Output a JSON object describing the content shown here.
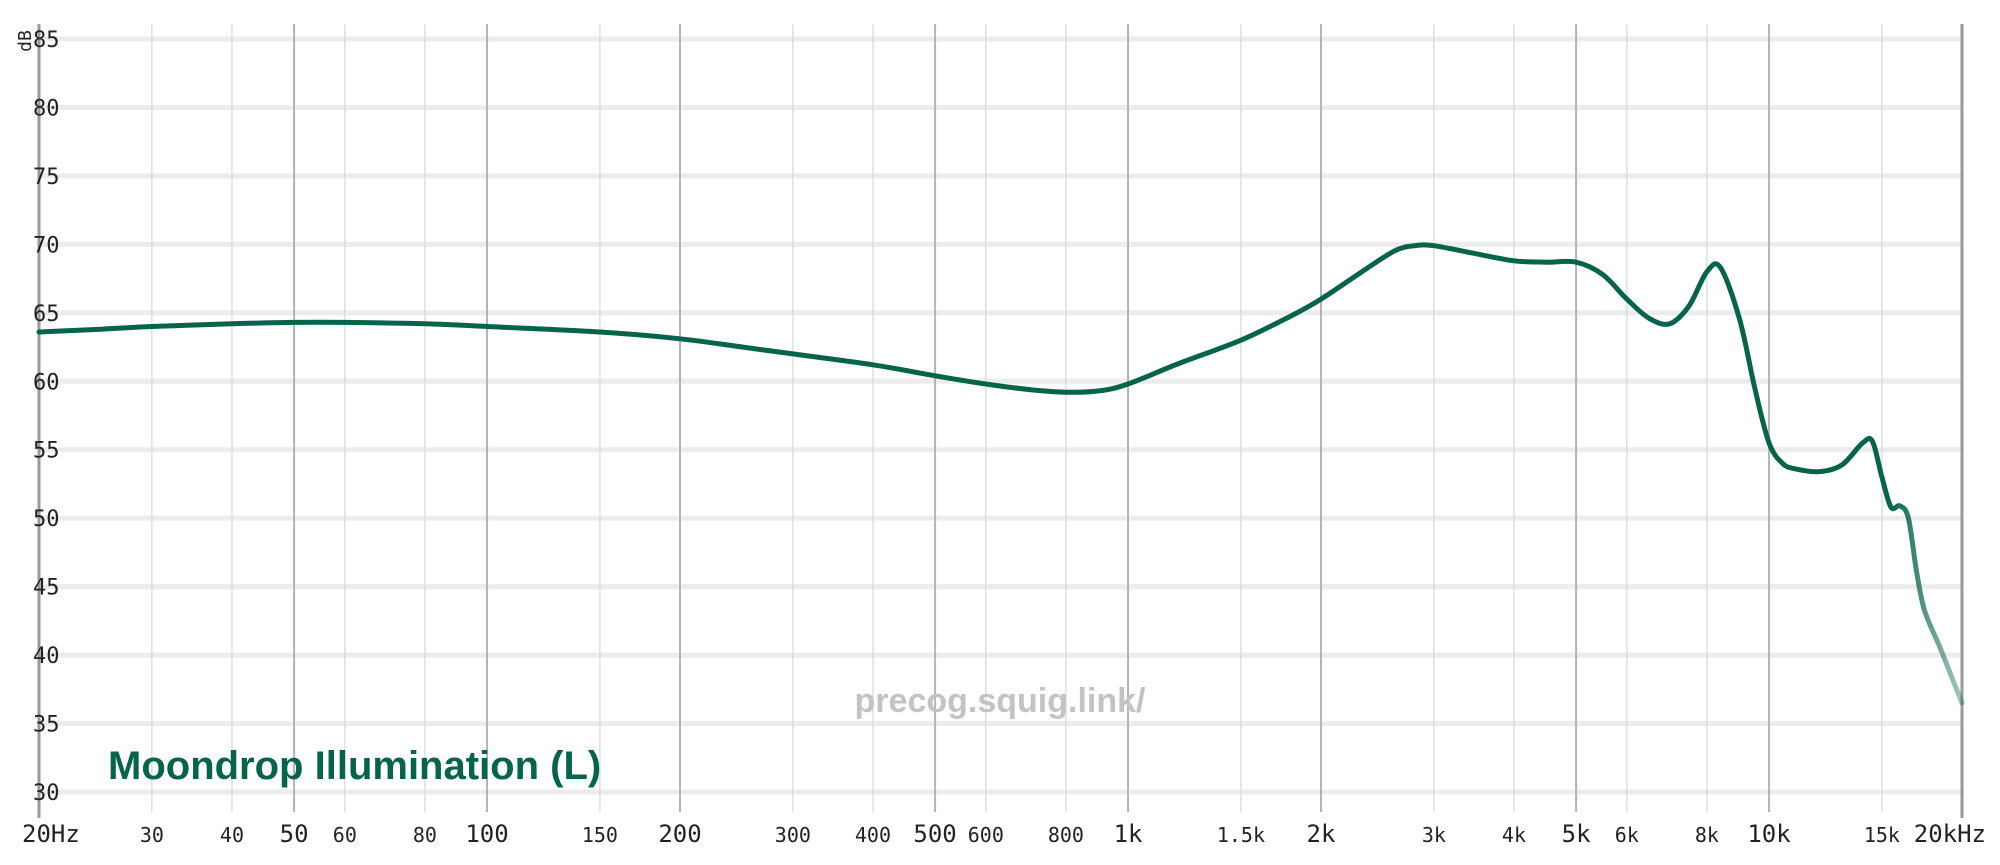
{
  "chart_data": {
    "type": "line",
    "xscale": "log",
    "xlim": [
      20,
      20000
    ],
    "ylim": [
      30,
      85
    ],
    "ylabel": "dB",
    "grid": true,
    "y_ticks": [
      {
        "value": 30,
        "label": "30"
      },
      {
        "value": 35,
        "label": "35"
      },
      {
        "value": 40,
        "label": "40"
      },
      {
        "value": 45,
        "label": "45"
      },
      {
        "value": 50,
        "label": "50"
      },
      {
        "value": 55,
        "label": "55"
      },
      {
        "value": 60,
        "label": "60"
      },
      {
        "value": 65,
        "label": "65"
      },
      {
        "value": 70,
        "label": "70"
      },
      {
        "value": 75,
        "label": "75"
      },
      {
        "value": 80,
        "label": "80"
      },
      {
        "value": 85,
        "label": "85"
      }
    ],
    "x_ticks": [
      {
        "value": 20,
        "label": "20Hz",
        "major": true
      },
      {
        "value": 30,
        "label": "30",
        "major": false
      },
      {
        "value": 40,
        "label": "40",
        "major": false
      },
      {
        "value": 50,
        "label": "50",
        "major": true
      },
      {
        "value": 60,
        "label": "60",
        "major": false
      },
      {
        "value": 80,
        "label": "80",
        "major": false
      },
      {
        "value": 100,
        "label": "100",
        "major": true
      },
      {
        "value": 150,
        "label": "150",
        "major": false
      },
      {
        "value": 200,
        "label": "200",
        "major": true
      },
      {
        "value": 300,
        "label": "300",
        "major": false
      },
      {
        "value": 400,
        "label": "400",
        "major": false
      },
      {
        "value": 500,
        "label": "500",
        "major": true
      },
      {
        "value": 600,
        "label": "600",
        "major": false
      },
      {
        "value": 800,
        "label": "800",
        "major": false
      },
      {
        "value": 1000,
        "label": "1k",
        "major": true
      },
      {
        "value": 1500,
        "label": "1.5k",
        "major": false
      },
      {
        "value": 2000,
        "label": "2k",
        "major": true
      },
      {
        "value": 3000,
        "label": "3k",
        "major": false
      },
      {
        "value": 4000,
        "label": "4k",
        "major": false
      },
      {
        "value": 5000,
        "label": "5k",
        "major": true
      },
      {
        "value": 6000,
        "label": "6k",
        "major": false
      },
      {
        "value": 8000,
        "label": "8k",
        "major": false
      },
      {
        "value": 10000,
        "label": "10k",
        "major": true
      },
      {
        "value": 15000,
        "label": "15k",
        "major": false
      },
      {
        "value": 20000,
        "label": "20kHz",
        "major": true
      }
    ],
    "series": [
      {
        "name": "Moondrop Illumination (L)",
        "color": "#05644a",
        "points": [
          [
            20,
            63.6
          ],
          [
            25,
            63.8
          ],
          [
            30,
            64.0
          ],
          [
            40,
            64.2
          ],
          [
            50,
            64.3
          ],
          [
            60,
            64.3
          ],
          [
            80,
            64.2
          ],
          [
            100,
            64.0
          ],
          [
            150,
            63.6
          ],
          [
            200,
            63.1
          ],
          [
            250,
            62.5
          ],
          [
            300,
            62.0
          ],
          [
            400,
            61.2
          ],
          [
            500,
            60.4
          ],
          [
            600,
            59.8
          ],
          [
            700,
            59.4
          ],
          [
            800,
            59.2
          ],
          [
            900,
            59.3
          ],
          [
            1000,
            59.8
          ],
          [
            1200,
            61.3
          ],
          [
            1500,
            63.0
          ],
          [
            1800,
            64.8
          ],
          [
            2000,
            66.0
          ],
          [
            2300,
            67.9
          ],
          [
            2600,
            69.5
          ],
          [
            2800,
            69.9
          ],
          [
            3000,
            69.9
          ],
          [
            3500,
            69.3
          ],
          [
            4000,
            68.8
          ],
          [
            4500,
            68.7
          ],
          [
            5000,
            68.7
          ],
          [
            5500,
            67.8
          ],
          [
            6000,
            66.0
          ],
          [
            6500,
            64.6
          ],
          [
            7000,
            64.2
          ],
          [
            7500,
            65.5
          ],
          [
            8000,
            68.0
          ],
          [
            8400,
            68.3
          ],
          [
            9000,
            64.5
          ],
          [
            9500,
            59.5
          ],
          [
            10000,
            55.5
          ],
          [
            10500,
            54.0
          ],
          [
            11000,
            53.6
          ],
          [
            12000,
            53.4
          ],
          [
            13000,
            53.9
          ],
          [
            14000,
            55.5
          ],
          [
            14500,
            55.6
          ],
          [
            15000,
            53.0
          ],
          [
            15500,
            50.8
          ],
          [
            16000,
            50.9
          ],
          [
            16500,
            50.0
          ],
          [
            17000,
            46.0
          ],
          [
            17500,
            43.2
          ],
          [
            18500,
            40.5
          ],
          [
            20000,
            36.5
          ]
        ]
      }
    ],
    "watermark": "precog.squig.link/"
  }
}
